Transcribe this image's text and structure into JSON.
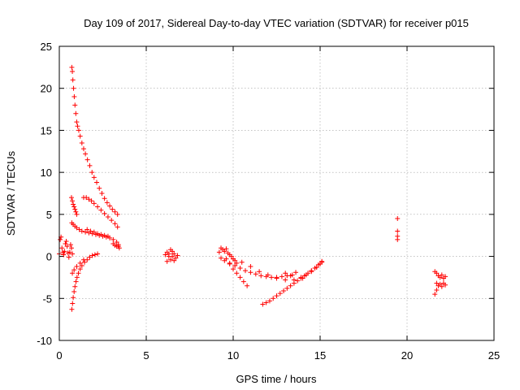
{
  "chart_data": {
    "type": "scatter",
    "title": "Day 109 of 2017, Sidereal Day-to-day VTEC variation (SDTVAR) for receiver p015",
    "xlabel": "GPS time / hours",
    "ylabel": "SDTVAR / TECUs",
    "xlim": [
      0,
      25
    ],
    "ylim": [
      -10,
      25
    ],
    "xticks": [
      0,
      5,
      10,
      15,
      20,
      25
    ],
    "yticks": [
      -10,
      -5,
      0,
      5,
      10,
      15,
      20,
      25
    ],
    "grid": true,
    "marker": "plus",
    "color": "#ff0000",
    "series": [
      {
        "x": [
          0.72,
          0.75,
          0.78,
          0.82,
          0.86,
          0.9,
          0.95,
          1.0,
          1.05,
          1.12,
          1.2,
          1.3,
          1.4,
          1.5,
          1.62,
          1.75,
          1.88,
          2.0,
          2.15,
          2.3,
          2.45,
          2.6,
          2.75,
          2.9,
          3.05,
          3.2,
          3.35
        ],
        "y": [
          22.5,
          22.0,
          21.0,
          20.0,
          19.0,
          18.0,
          17.0,
          16.0,
          15.5,
          15.0,
          14.3,
          13.5,
          12.8,
          12.2,
          11.5,
          10.8,
          10.0,
          9.4,
          8.8,
          8.1,
          7.5,
          6.9,
          6.4,
          6.0,
          5.6,
          5.3,
          5.0
        ]
      },
      {
        "x": [
          0.7,
          0.75,
          0.8,
          0.85,
          0.9,
          0.95,
          1.0
        ],
        "y": [
          7.0,
          6.6,
          6.2,
          5.9,
          5.6,
          5.3,
          5.0
        ]
      },
      {
        "x": [
          1.4,
          1.55,
          1.7,
          1.85,
          2.0,
          2.2,
          2.4,
          2.6,
          2.8,
          3.0,
          3.2,
          3.35
        ],
        "y": [
          7.0,
          7.0,
          6.8,
          6.6,
          6.3,
          5.9,
          5.5,
          5.1,
          4.7,
          4.3,
          3.9,
          3.5
        ]
      },
      {
        "x": [
          0.72,
          0.8,
          0.9,
          1.0,
          1.15,
          1.3,
          1.5,
          1.7,
          1.9,
          2.1,
          2.3,
          2.5,
          2.7,
          2.9,
          3.1,
          3.3,
          3.4
        ],
        "y": [
          4.0,
          3.8,
          3.6,
          3.4,
          3.2,
          3.0,
          2.9,
          2.8,
          2.7,
          2.6,
          2.5,
          2.4,
          2.3,
          2.2,
          2.0,
          1.7,
          1.2
        ]
      },
      {
        "x": [
          1.6,
          1.8,
          2.0,
          2.2,
          2.4,
          2.6,
          2.8
        ],
        "y": [
          3.2,
          3.0,
          2.9,
          2.7,
          2.6,
          2.5,
          2.4
        ]
      },
      {
        "x": [
          0.72,
          0.76,
          0.8,
          0.85,
          0.9,
          0.96,
          1.02,
          1.1,
          1.2,
          1.3,
          1.45,
          1.6,
          1.75,
          1.9,
          2.05,
          2.2
        ],
        "y": [
          -6.3,
          -5.6,
          -4.9,
          -4.2,
          -3.6,
          -3.0,
          -2.5,
          -2.0,
          -1.5,
          -1.1,
          -0.7,
          -0.4,
          -0.1,
          0.1,
          0.2,
          0.3
        ]
      },
      {
        "x": [
          0.75,
          0.85,
          1.0,
          1.2,
          1.4
        ],
        "y": [
          -2.0,
          -1.6,
          -1.2,
          -0.8,
          -0.4
        ]
      },
      {
        "x": [
          3.1,
          3.2,
          3.3,
          3.4,
          3.45
        ],
        "y": [
          1.5,
          1.3,
          1.2,
          1.4,
          1.0
        ]
      },
      {
        "x": [
          0.0,
          0.05,
          0.1,
          0.15,
          0.2,
          0.25,
          0.3,
          0.35,
          0.4,
          0.45,
          0.5,
          0.55,
          0.6,
          0.65,
          0.7,
          0.75
        ],
        "y": [
          0.3,
          2.0,
          2.3,
          1.0,
          0.5,
          0.2,
          0.6,
          1.5,
          1.8,
          1.2,
          0.4,
          -0.1,
          0.5,
          1.4,
          1.0,
          0.3
        ]
      },
      {
        "x": [
          6.1,
          6.2,
          6.3,
          6.4,
          6.5,
          6.6,
          6.7,
          6.8,
          6.2,
          6.4,
          6.6,
          6.5,
          6.3
        ],
        "y": [
          0.2,
          0.5,
          0.0,
          -0.4,
          0.6,
          0.3,
          -0.2,
          0.1,
          -0.6,
          0.8,
          -0.5,
          0.0,
          0.3
        ]
      },
      {
        "x": [
          9.2,
          9.3,
          9.4,
          9.5,
          9.6,
          9.7,
          9.8,
          9.9,
          10.0,
          10.1,
          10.2
        ],
        "y": [
          0.5,
          1.0,
          0.8,
          0.6,
          0.9,
          0.4,
          0.2,
          0.0,
          -0.3,
          -0.5,
          -0.8
        ]
      },
      {
        "x": [
          9.3,
          9.5,
          9.8,
          10.1,
          10.4,
          10.7,
          11.0,
          11.3,
          11.6,
          11.9,
          12.2,
          12.5,
          12.8,
          13.1,
          13.4
        ],
        "y": [
          -0.2,
          -0.5,
          -0.8,
          -1.1,
          -1.4,
          -1.7,
          -1.9,
          -2.1,
          -2.3,
          -2.4,
          -2.5,
          -2.5,
          -2.4,
          -2.3,
          -2.2
        ]
      },
      {
        "x": [
          9.6,
          9.8,
          10.0,
          10.2,
          10.4,
          10.6,
          10.8
        ],
        "y": [
          -0.3,
          -0.9,
          -1.5,
          -2.0,
          -2.5,
          -3.0,
          -3.5
        ]
      },
      {
        "x": [
          10.0,
          10.5,
          11.0,
          11.5,
          12.0,
          12.5,
          13.0,
          13.5,
          14.0
        ],
        "y": [
          -0.3,
          -0.7,
          -1.2,
          -1.8,
          -2.2,
          -2.6,
          -2.8,
          -2.8,
          -2.6
        ]
      },
      {
        "x": [
          11.7,
          11.9,
          12.1,
          12.3,
          12.5,
          12.7,
          12.9,
          13.1,
          13.3,
          13.5,
          13.7,
          13.9,
          14.1,
          14.3,
          14.5,
          14.7,
          14.9,
          15.1
        ],
        "y": [
          -5.7,
          -5.5,
          -5.3,
          -5.0,
          -4.7,
          -4.4,
          -4.1,
          -3.8,
          -3.5,
          -3.2,
          -2.9,
          -2.6,
          -2.3,
          -2.0,
          -1.7,
          -1.4,
          -1.0,
          -0.7
        ]
      },
      {
        "x": [
          13.0,
          13.3,
          13.6,
          13.9,
          14.2,
          14.5,
          14.8,
          15.0,
          15.1
        ],
        "y": [
          -2.0,
          -2.3,
          -1.9,
          -2.5,
          -2.2,
          -1.8,
          -1.3,
          -0.9,
          -0.6
        ]
      },
      {
        "x": [
          19.45,
          19.45,
          19.45,
          19.45
        ],
        "y": [
          4.5,
          3.0,
          2.4,
          2.0
        ]
      },
      {
        "x": [
          21.6,
          21.7,
          21.8,
          21.9,
          22.0,
          22.1,
          22.2,
          21.7,
          21.8,
          21.9,
          22.0,
          22.1,
          22.2,
          21.6,
          21.7
        ],
        "y": [
          -1.8,
          -2.0,
          -2.3,
          -2.5,
          -2.2,
          -2.6,
          -2.4,
          -3.2,
          -3.5,
          -3.3,
          -3.6,
          -3.2,
          -3.4,
          -4.5,
          -4.0
        ]
      }
    ]
  }
}
